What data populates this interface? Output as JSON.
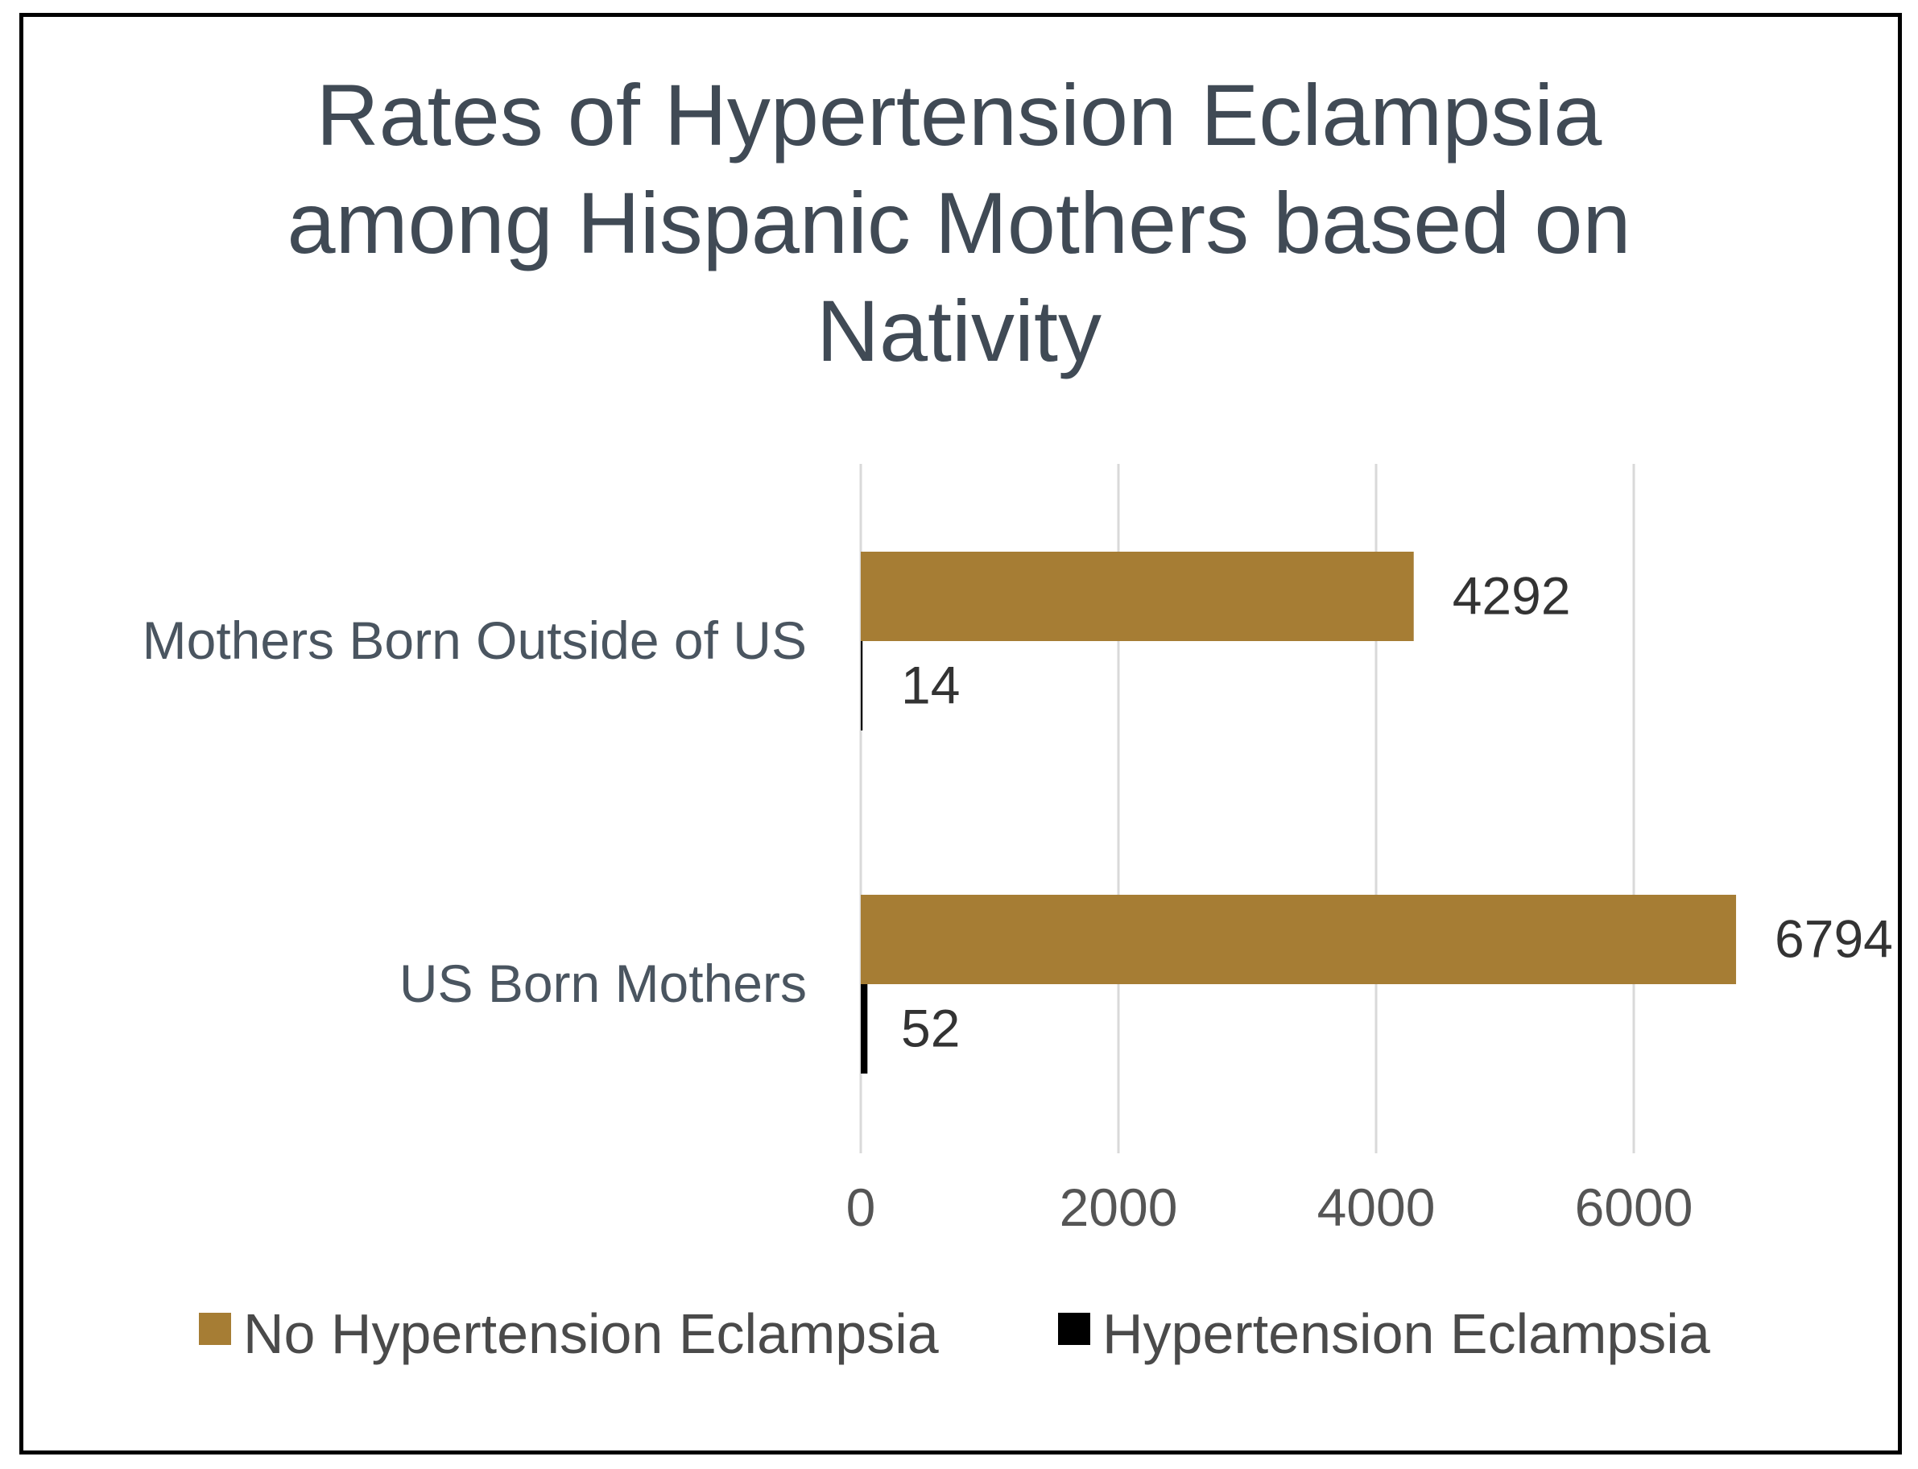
{
  "chart_data": {
    "type": "bar",
    "orientation": "horizontal",
    "title_lines": [
      "Rates of Hypertension Eclampsia",
      "among Hispanic Mothers based on",
      "Nativity"
    ],
    "categories": [
      "Mothers Born Outside of US",
      "US Born Mothers"
    ],
    "series": [
      {
        "name": "No Hypertension Eclampsia",
        "color": "#a67d34",
        "values": [
          4292,
          6794
        ]
      },
      {
        "name": "Hypertension Eclampsia",
        "color": "#000000",
        "values": [
          14,
          52
        ]
      }
    ],
    "xlim": [
      0,
      6800
    ],
    "xticks": [
      "0",
      "2000",
      "4000",
      "6000"
    ],
    "grid": true,
    "legend": "bottom",
    "xlabel": "",
    "ylabel": ""
  }
}
